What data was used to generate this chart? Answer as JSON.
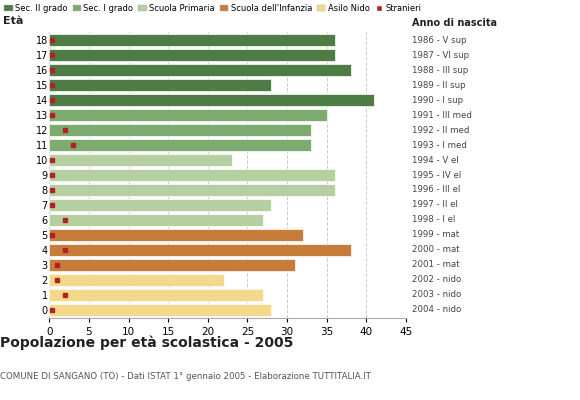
{
  "ages": [
    18,
    17,
    16,
    15,
    14,
    13,
    12,
    11,
    10,
    9,
    8,
    7,
    6,
    5,
    4,
    3,
    2,
    1,
    0
  ],
  "years": [
    "1986 - V sup",
    "1987 - VI sup",
    "1988 - III sup",
    "1989 - II sup",
    "1990 - I sup",
    "1991 - III med",
    "1992 - II med",
    "1993 - I med",
    "1994 - V el",
    "1995 - IV el",
    "1996 - III el",
    "1997 - II el",
    "1998 - I el",
    "1999 - mat",
    "2000 - mat",
    "2001 - mat",
    "2002 - nido",
    "2003 - nido",
    "2004 - nido"
  ],
  "values": [
    36,
    36,
    38,
    28,
    41,
    35,
    33,
    33,
    23,
    36,
    36,
    28,
    27,
    32,
    38,
    31,
    22,
    27,
    28
  ],
  "stranieri": [
    0,
    0,
    0,
    0,
    0,
    0,
    2,
    3,
    0,
    0,
    0,
    0,
    2,
    0,
    2,
    1,
    1,
    2,
    0
  ],
  "bar_colors": [
    "#4e7c45",
    "#4e7c45",
    "#4e7c45",
    "#4e7c45",
    "#4e7c45",
    "#7daa6e",
    "#7daa6e",
    "#7daa6e",
    "#b5cfa0",
    "#b5cfa0",
    "#b5cfa0",
    "#b5cfa0",
    "#b5cfa0",
    "#c87c3a",
    "#c87c3a",
    "#c87c3a",
    "#f5d98b",
    "#f5d98b",
    "#f5d98b"
  ],
  "legend_labels": [
    "Sec. II grado",
    "Sec. I grado",
    "Scuola Primaria",
    "Scuola dell'Infanzia",
    "Asilo Nido",
    "Stranieri"
  ],
  "legend_colors": [
    "#4e7c45",
    "#7daa6e",
    "#b5cfa0",
    "#c87c3a",
    "#f5d98b",
    "#b22222"
  ],
  "title": "Popolazione per età scolastica - 2005",
  "subtitle": "COMUNE DI SANGANO (TO) - Dati ISTAT 1° gennaio 2005 - Elaborazione TUTTITALIA.IT",
  "xlim": [
    0,
    45
  ],
  "bar_height": 0.82,
  "stranieri_color": "#b22222",
  "background_color": "#ffffff",
  "grid_color": "#cccccc"
}
